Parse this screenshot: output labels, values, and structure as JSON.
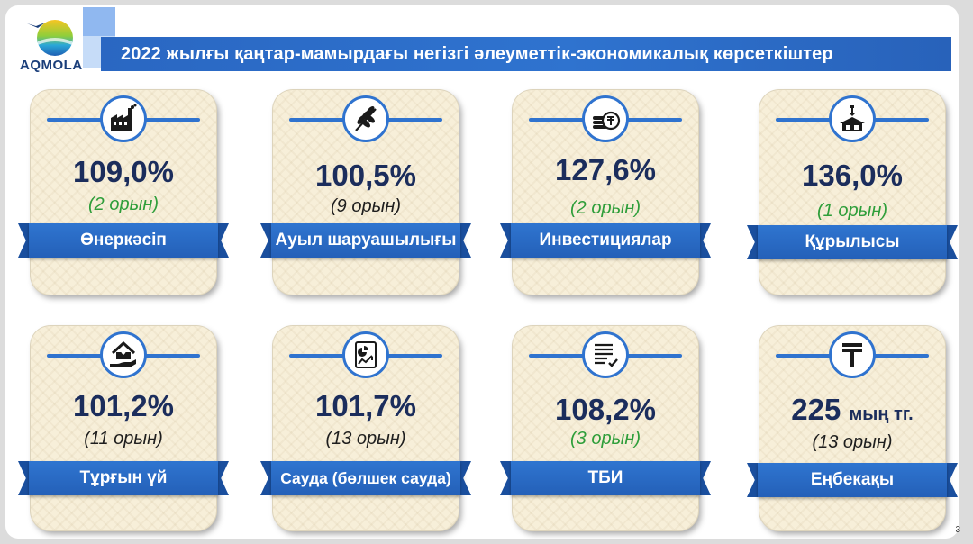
{
  "header": {
    "logo_text": "AQMOLA",
    "title": "2022 жылғы қаңтар-мамырдағы негізгі әлеуметтік-экономикалық көрсеткіштер"
  },
  "cards": [
    {
      "icon": "factory-icon",
      "value": "109,0%",
      "rank": "(2 орын)",
      "label": "Өнеркәсіп"
    },
    {
      "icon": "wheat-icon",
      "value": "100,5%",
      "rank": "(9 орын)",
      "label": "Ауыл шаруашылығы"
    },
    {
      "icon": "coins-icon",
      "value": "127,6%",
      "rank": "(2 орын)",
      "label": "Инвестициялар"
    },
    {
      "icon": "crane-building-icon",
      "value": "136,0%",
      "rank": "(1 орын)",
      "label": "Құрылысы"
    },
    {
      "icon": "house-hand-icon",
      "value": "101,2%",
      "rank": "(11 орын)",
      "label": "Тұрғын үй"
    },
    {
      "icon": "retail-chart-icon",
      "value": "101,7%",
      "rank": "(13 орын)",
      "label": "Сауда (бөлшек сауда)"
    },
    {
      "icon": "document-check-icon",
      "value": "108,2%",
      "rank": "(3 орын)",
      "label": "ТБИ"
    },
    {
      "icon": "tenge-icon",
      "value": "225",
      "unit": "мың тг.",
      "rank": "(13 орын)",
      "label": "Еңбекақы"
    }
  ],
  "colors": {
    "accent": "#2f73cf",
    "value_text": "#1b2d5c",
    "rank_green": "#2e9e3a",
    "card_bg": "#f7efd9"
  },
  "page_number": "3"
}
